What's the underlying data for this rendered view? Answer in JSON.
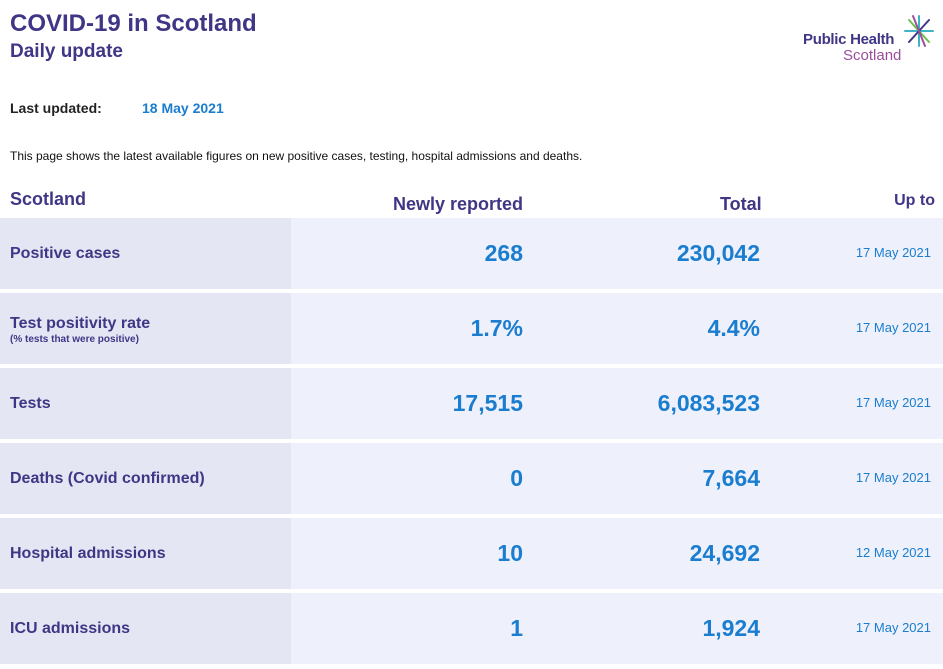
{
  "header": {
    "title": "COVID-19 in Scotland",
    "subtitle": "Daily update"
  },
  "logo": {
    "line1": "Public Health",
    "line2": "Scotland",
    "icon": "star-burst-icon"
  },
  "updated": {
    "label": "Last updated:",
    "value": "18 May 2021"
  },
  "intro": "This page shows the latest available figures on new positive cases, testing, hospital admissions and deaths.",
  "table": {
    "columns": {
      "region": "Scotland",
      "new": "Newly reported",
      "total": "Total",
      "upto": "Up to"
    },
    "rows": [
      {
        "label": "Positive cases",
        "sublabel": "",
        "new": "268",
        "total": "230,042",
        "upto": "17 May 2021"
      },
      {
        "label": "Test positivity rate",
        "sublabel": "(% tests that were positive)",
        "new": "1.7%",
        "total": "4.4%",
        "upto": "17 May 2021"
      },
      {
        "label": "Tests",
        "sublabel": "",
        "new": "17,515",
        "total": "6,083,523",
        "upto": "17 May 2021"
      },
      {
        "label": "Deaths (Covid confirmed)",
        "sublabel": "",
        "new": "0",
        "total": "7,664",
        "upto": "17 May 2021"
      },
      {
        "label": "Hospital admissions",
        "sublabel": "",
        "new": "10",
        "total": "24,692",
        "upto": "12 May 2021"
      },
      {
        "label": "ICU admissions",
        "sublabel": "",
        "new": "1",
        "total": "1,924",
        "upto": "17 May 2021"
      }
    ]
  },
  "colors": {
    "heading": "#3f3685",
    "value": "#1a7dcf",
    "logo_accent": "#9b4f9b",
    "row_bg": "#eef1fb",
    "label_bg": "#e4e7f3"
  }
}
